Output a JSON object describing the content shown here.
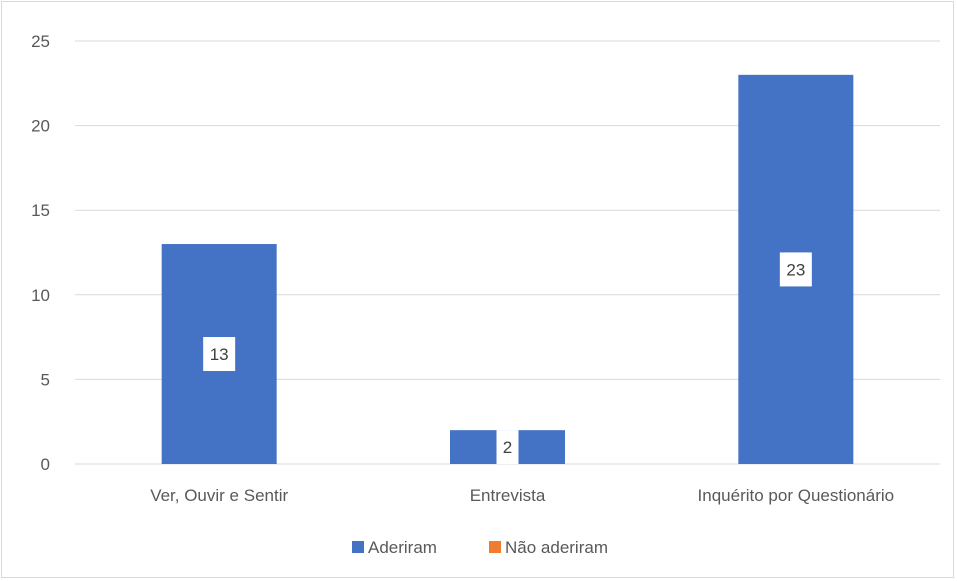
{
  "chart_data": {
    "type": "bar",
    "categories": [
      "Ver, Ouvir e Sentir",
      "Entrevista",
      "Inquérito por Questionário"
    ],
    "series": [
      {
        "name": "Aderiram",
        "values": [
          13,
          2,
          23
        ],
        "color": "#4472C4"
      },
      {
        "name": "Não aderiram",
        "values": [
          0,
          0,
          0
        ],
        "color": "#ED7D31"
      }
    ],
    "ylim": [
      0,
      25
    ],
    "yticks": [
      0,
      5,
      10,
      15,
      20,
      25
    ],
    "grid": true,
    "legend": "bottom",
    "data_labels": [
      "13",
      "2",
      "23"
    ]
  }
}
